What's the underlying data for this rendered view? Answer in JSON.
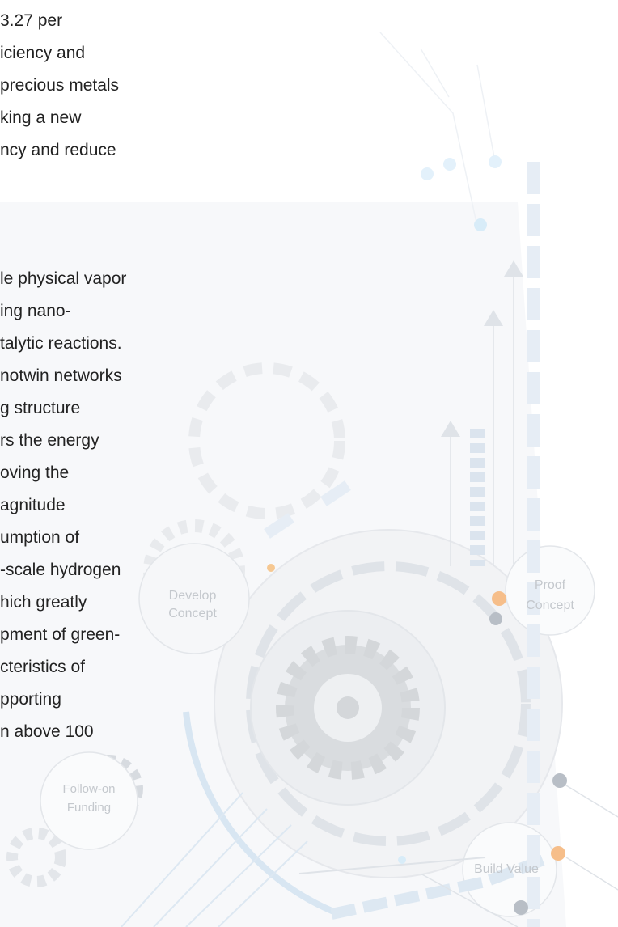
{
  "paragraphs": [
    [
      "3.27 per",
      "iciency and",
      "precious metals",
      "king a new",
      "ncy and reduce"
    ],
    [
      "le physical vapor",
      "ing nano-",
      "talytic reactions.",
      "notwin networks",
      "g structure",
      "rs the energy",
      "oving the",
      "agnitude",
      "umption of",
      "-scale hydrogen",
      "hich greatly",
      "pment of green-",
      "cteristics of",
      "pporting",
      "n above 100"
    ]
  ],
  "graphic": {
    "develop": [
      "Develop",
      "Concept"
    ],
    "proof": [
      "Proof",
      "Concept"
    ],
    "funding": [
      "Follow-on",
      "Funding"
    ],
    "build": "Build Value"
  }
}
